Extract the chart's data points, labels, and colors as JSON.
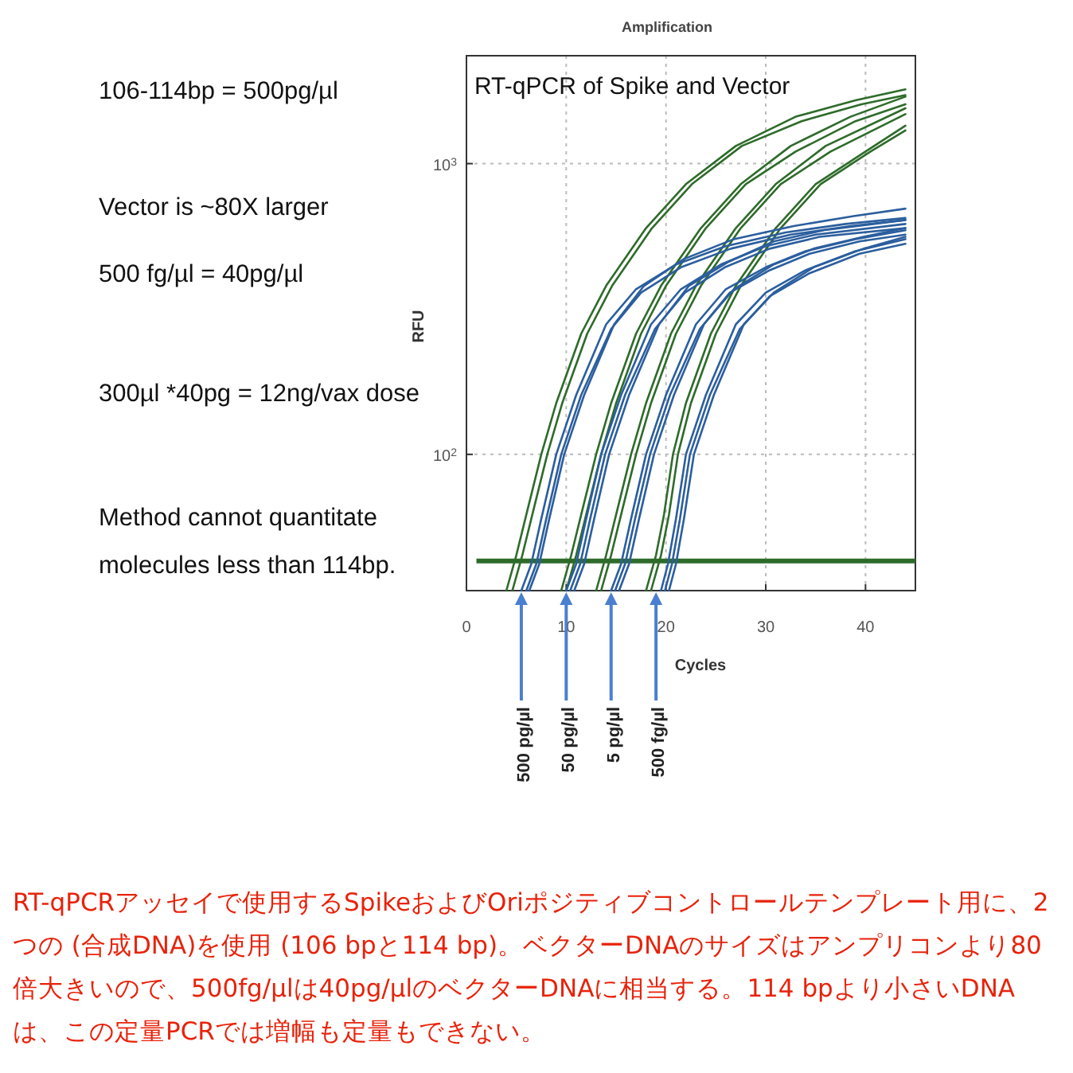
{
  "chart_data": {
    "type": "line",
    "title": "Amplification",
    "subtitle": "RT-qPCR of Spike and Vector",
    "xlabel": "Cycles",
    "ylabel": "RFU",
    "log": "y",
    "grid": true,
    "xlim": [
      0,
      45
    ],
    "ylim": [
      34,
      2350
    ],
    "xticks": [
      0,
      10,
      20,
      30,
      40
    ],
    "yticks": [
      {
        "value": 100,
        "label": "10$^{2}$"
      },
      {
        "value": 1000,
        "label": "10$^{3}$"
      }
    ],
    "ref_lines": [
      {
        "axis": "y",
        "value": 43,
        "color": "#2e6b2a"
      }
    ],
    "series": [
      {
        "color": "#2e6b2a",
        "x": [
          4,
          5,
          6,
          7.5,
          9,
          11.5,
          14,
          18,
          22,
          27,
          33,
          39,
          44
        ],
        "values": [
          34,
          45,
          62,
          100,
          150,
          260,
          380,
          600,
          850,
          1150,
          1450,
          1650,
          1800
        ]
      },
      {
        "color": "#2e6b2a",
        "x": [
          4.6,
          5.6,
          6.6,
          8.1,
          9.6,
          12.1,
          14.6,
          18.6,
          22.6,
          27.6,
          33.6,
          39.6,
          44
        ],
        "values": [
          34,
          45,
          62,
          100,
          150,
          260,
          380,
          600,
          850,
          1150,
          1400,
          1600,
          1720
        ]
      },
      {
        "color": "#2e6b2a",
        "x": [
          9.5,
          10.5,
          11.5,
          13,
          14.5,
          17,
          19.5,
          23.5,
          27.5,
          32.5,
          38.5,
          44
        ],
        "values": [
          34,
          45,
          62,
          100,
          150,
          260,
          380,
          600,
          850,
          1150,
          1450,
          1700
        ]
      },
      {
        "color": "#2e6b2a",
        "x": [
          10,
          11,
          12,
          13.5,
          15,
          17.5,
          20,
          24,
          28,
          33,
          39,
          44
        ],
        "values": [
          34,
          45,
          62,
          100,
          150,
          260,
          380,
          600,
          850,
          1100,
          1400,
          1600
        ]
      },
      {
        "color": "#2e6b2a",
        "x": [
          13,
          14,
          15,
          16.5,
          18,
          20.5,
          23,
          27,
          31,
          36,
          44
        ],
        "values": [
          34,
          45,
          62,
          100,
          150,
          260,
          380,
          600,
          850,
          1150,
          1550
        ]
      },
      {
        "color": "#2e6b2a",
        "x": [
          13.5,
          14.5,
          15.5,
          17,
          18.5,
          21,
          23.5,
          27.5,
          31.5,
          36.5,
          44
        ],
        "values": [
          34,
          45,
          62,
          100,
          150,
          260,
          380,
          600,
          850,
          1100,
          1480
        ]
      },
      {
        "color": "#2e6b2a",
        "x": [
          18,
          19,
          19.8,
          20.7,
          22,
          24.5,
          27,
          31,
          35,
          40,
          44
        ],
        "values": [
          34,
          45,
          62,
          100,
          150,
          260,
          380,
          600,
          850,
          1100,
          1350
        ]
      },
      {
        "color": "#2e6b2a",
        "x": [
          18.5,
          19.5,
          20.3,
          21.2,
          22.5,
          25,
          27.5,
          31.5,
          35.5,
          40.5,
          44
        ],
        "values": [
          34,
          45,
          62,
          100,
          150,
          260,
          380,
          600,
          850,
          1100,
          1300
        ]
      },
      {
        "color": "#2b5e9e",
        "x": [
          5.5,
          6.5,
          7.5,
          9,
          11,
          14,
          17,
          21,
          26,
          32,
          38,
          44
        ],
        "values": [
          34,
          42,
          60,
          100,
          160,
          280,
          370,
          450,
          520,
          580,
          620,
          650
        ]
      },
      {
        "color": "#2b5e9e",
        "x": [
          6,
          7,
          8,
          9.5,
          11.5,
          14.5,
          17.5,
          21.5,
          26.5,
          32.5,
          38.5,
          44
        ],
        "values": [
          34,
          42,
          60,
          100,
          160,
          270,
          360,
          440,
          510,
          570,
          610,
          640
        ]
      },
      {
        "color": "#2b5e9e",
        "x": [
          6.3,
          7.3,
          8.3,
          9.8,
          11.8,
          14.8,
          17.8,
          21.8,
          26.8,
          32.8,
          38.8,
          44
        ],
        "values": [
          34,
          42,
          60,
          100,
          160,
          280,
          380,
          470,
          550,
          610,
          660,
          700
        ]
      },
      {
        "color": "#2b5e9e",
        "x": [
          10,
          11,
          12,
          13.5,
          15.5,
          18.5,
          21.5,
          25.5,
          30,
          35,
          44
        ],
        "values": [
          34,
          42,
          60,
          100,
          160,
          280,
          370,
          450,
          520,
          570,
          620
        ]
      },
      {
        "color": "#2b5e9e",
        "x": [
          10.4,
          11.4,
          12.4,
          13.9,
          15.9,
          18.9,
          21.9,
          25.9,
          30.4,
          35.4,
          44
        ],
        "values": [
          34,
          42,
          60,
          100,
          160,
          270,
          360,
          440,
          510,
          560,
          600
        ]
      },
      {
        "color": "#2b5e9e",
        "x": [
          10.8,
          11.8,
          12.8,
          14.3,
          16.3,
          19.3,
          22.3,
          26.3,
          30.8,
          35.8,
          44
        ],
        "values": [
          34,
          42,
          60,
          100,
          160,
          280,
          380,
          460,
          540,
          590,
          640
        ]
      },
      {
        "color": "#2b5e9e",
        "x": [
          14.5,
          15.5,
          16.5,
          18,
          20,
          23,
          26,
          30,
          34,
          39,
          44
        ],
        "values": [
          34,
          42,
          60,
          100,
          160,
          280,
          370,
          440,
          500,
          550,
          590
        ]
      },
      {
        "color": "#2b5e9e",
        "x": [
          14.9,
          15.9,
          16.9,
          18.4,
          20.4,
          23.4,
          26.4,
          30.4,
          34.4,
          39.4,
          44
        ],
        "values": [
          34,
          42,
          60,
          100,
          160,
          270,
          360,
          430,
          490,
          540,
          570
        ]
      },
      {
        "color": "#2b5e9e",
        "x": [
          15.3,
          16.3,
          17.3,
          18.8,
          20.8,
          23.8,
          26.8,
          30.8,
          34.8,
          39.8,
          44
        ],
        "values": [
          34,
          42,
          60,
          100,
          160,
          280,
          370,
          450,
          510,
          560,
          600
        ]
      },
      {
        "color": "#2b5e9e",
        "x": [
          19.5,
          20.2,
          21,
          22,
          24,
          27,
          30,
          34,
          39,
          44
        ],
        "values": [
          34,
          42,
          60,
          100,
          160,
          280,
          360,
          430,
          500,
          550
        ]
      },
      {
        "color": "#2b5e9e",
        "x": [
          19.9,
          20.6,
          21.4,
          22.4,
          24.4,
          27.4,
          30.4,
          34.4,
          39.4,
          44
        ],
        "values": [
          34,
          42,
          60,
          100,
          160,
          270,
          350,
          420,
          490,
          530
        ]
      },
      {
        "color": "#2b5e9e",
        "x": [
          20.3,
          21,
          21.8,
          22.8,
          24.8,
          27.8,
          30.8,
          34.8,
          39.8,
          44
        ],
        "values": [
          34,
          42,
          60,
          100,
          160,
          280,
          360,
          440,
          510,
          560
        ]
      }
    ],
    "annotations": [
      "106-114bp = 500pg/µl",
      "Vector is ~80X larger",
      "500 fg/µl = 40pg/µl",
      "300µl *40pg = 12ng/vax dose",
      "Method cannot quantitate molecules less than 114bp.",
      {
        "text": "500 pg/µl",
        "x": 5.5,
        "y": 34
      },
      {
        "text": "50 pg/µl",
        "x": 10,
        "y": 34
      },
      {
        "text": "5 pg/µl",
        "x": 14.5,
        "y": 34
      },
      {
        "text": "500 fg/µl",
        "x": 19,
        "y": 34
      },
      "RT-qPCRアッセイで使用するSpikeおよびOriポジティブコントロールテンプレート用に、2つの (合成DNA)を使用 (106 bpと114 bp)。ベクターDNAのサイズはアンプリコンより80倍大きいので、500fg/μlは40pg/μlのベクターDNAに相当する。114 bpより小さいDNAは、この定量PCRでは増幅も定量もできない。"
    ]
  }
}
